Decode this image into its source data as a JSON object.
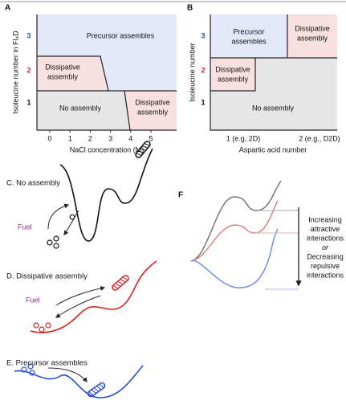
{
  "panel_a": {
    "label": "A",
    "y_axis_title": "Isoleucine number in Fl₄D",
    "x_axis_title": "NaCl concentration (M)",
    "y_tick_labels": [
      "3",
      "2",
      "1"
    ],
    "x_tick_labels": [
      "0",
      "1",
      "2",
      "3",
      "4",
      "5"
    ],
    "regions": [
      [
        "Precursor assembles"
      ],
      [
        "Dissipative",
        "assembly"
      ],
      [
        "No assembly"
      ],
      [
        "Dissipative",
        "assembly"
      ]
    ]
  },
  "panel_b": {
    "label": "B",
    "y_axis_title": "Isoleucine number",
    "x_axis_title": "Aspartic acid number",
    "y_tick_labels": [
      "3",
      "2",
      "1"
    ],
    "x_tick_labels": [
      "1 (e.g, 2D)",
      "2 (e.g., D2D)"
    ],
    "regions": [
      [
        "Precursor",
        "assembles"
      ],
      [
        "Dissipative",
        "assembly"
      ],
      [
        "Dissipative",
        "assembly"
      ],
      [
        "No assembly"
      ]
    ]
  },
  "panel_c": {
    "title": "C. No assembly",
    "fuel": "Fuel"
  },
  "panel_d": {
    "title": "D. Dissipative assembly",
    "fuel": "Fuel"
  },
  "panel_e": {
    "title": "E. Precursor assembles"
  },
  "panel_f": {
    "label": "F",
    "annotation": [
      "Increasing",
      "attractive",
      "interactions",
      "or",
      "Decreasing",
      "repulsive",
      "interactions"
    ]
  }
}
